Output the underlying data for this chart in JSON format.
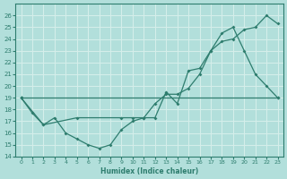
{
  "bg_color": "#b2dfdb",
  "grid_color": "#d4eeea",
  "line_color": "#2e7d6e",
  "xlabel": "Humidex (Indice chaleur)",
  "xlim": [
    -0.5,
    23.5
  ],
  "ylim": [
    14,
    27
  ],
  "yticks": [
    14,
    15,
    16,
    17,
    18,
    19,
    20,
    21,
    22,
    23,
    24,
    25,
    26
  ],
  "xticks": [
    0,
    1,
    2,
    3,
    4,
    5,
    6,
    7,
    8,
    9,
    10,
    11,
    12,
    13,
    14,
    15,
    16,
    17,
    18,
    19,
    20,
    21,
    22,
    23
  ],
  "line1_x": [
    0,
    1,
    2,
    3,
    4,
    5,
    6,
    7,
    8,
    9,
    10,
    11,
    12,
    13,
    14,
    15,
    16,
    17,
    18,
    19,
    20,
    21,
    22,
    23
  ],
  "line1_y": [
    19,
    17.7,
    16.7,
    17.3,
    16.0,
    15.5,
    15.0,
    14.7,
    15.0,
    16.3,
    17.0,
    17.3,
    17.3,
    19.5,
    18.5,
    21.3,
    21.5,
    23.0,
    24.5,
    25.0,
    23.0,
    21.0,
    20.0,
    19.0
  ],
  "line2_x": [
    0,
    2,
    5,
    9,
    10,
    11,
    12,
    13,
    14,
    15,
    16,
    17,
    18,
    19,
    20,
    21,
    22,
    23
  ],
  "line2_y": [
    19,
    16.7,
    17.3,
    17.3,
    17.3,
    17.3,
    18.5,
    19.3,
    19.3,
    19.8,
    21.0,
    23.0,
    23.8,
    24.0,
    24.8,
    25.0,
    26.0,
    25.3
  ],
  "line3_x": [
    0,
    23
  ],
  "line3_y": [
    19,
    19.0
  ]
}
